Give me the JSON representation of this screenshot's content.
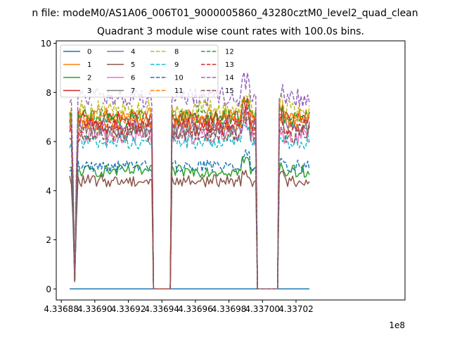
{
  "suptitle": "n file: modeM0/AS1A06_006T01_9000005860_43280cztM0_level2_quad_clean",
  "chart_data": {
    "type": "line",
    "title": "Quadrant 3 module wise count rates with 100.0s bins.",
    "xlabel": "",
    "ylabel": "",
    "x_offset_label": "1e8",
    "xlim": [
      4.336877,
      4.337085
    ],
    "ylim": [
      -0.45,
      10.1
    ],
    "xticks": [
      4.33688,
      4.3369,
      4.33692,
      4.33694,
      4.33696,
      4.33698,
      4.337,
      4.33702
    ],
    "xtick_labels": [
      "4.33688",
      "4.33690",
      "4.33692",
      "4.33694",
      "4.33696",
      "4.33698",
      "4.33700",
      "4.33702"
    ],
    "yticks": [
      0,
      2,
      4,
      6,
      8,
      10
    ],
    "ytick_labels": [
      "0",
      "2",
      "4",
      "6",
      "8",
      "10"
    ],
    "grid": false,
    "legend": {
      "placement": "top-left",
      "columns": 4
    },
    "time_points": {
      "segment_starts": [
        4.336885,
        4.336946,
        4.33701
      ],
      "segment_ends": [
        4.336934,
        4.336996,
        4.337028
      ],
      "gap_plateau": 0,
      "bin_width": 1e-06
    },
    "series": [
      {
        "name": "0",
        "color": "#1f77b4",
        "dashed": false,
        "level": 0.0,
        "spread": 0.0
      },
      {
        "name": "1",
        "color": "#ff7f0e",
        "dashed": false,
        "level": 7.0,
        "spread": 0.4
      },
      {
        "name": "2",
        "color": "#2ca02c",
        "dashed": false,
        "level": 4.8,
        "spread": 0.25
      },
      {
        "name": "3",
        "color": "#d62728",
        "dashed": false,
        "level": 6.9,
        "spread": 0.35
      },
      {
        "name": "4",
        "color": "#9467bd",
        "dashed": false,
        "level": 6.6,
        "spread": 0.35
      },
      {
        "name": "5",
        "color": "#8c564b",
        "dashed": false,
        "level": 4.4,
        "spread": 0.25
      },
      {
        "name": "6",
        "color": "#e377c2",
        "dashed": false,
        "level": 6.2,
        "spread": 0.35
      },
      {
        "name": "7",
        "color": "#7f7f7f",
        "dashed": false,
        "level": 6.5,
        "spread": 0.35
      },
      {
        "name": "8",
        "color": "#bcbd22",
        "dashed": true,
        "level": 7.3,
        "spread": 0.4
      },
      {
        "name": "9",
        "color": "#17becf",
        "dashed": true,
        "level": 6.0,
        "spread": 0.3
      },
      {
        "name": "10",
        "color": "#1f77b4",
        "dashed": true,
        "level": 5.0,
        "spread": 0.25
      },
      {
        "name": "11",
        "color": "#ff7f0e",
        "dashed": true,
        "level": 6.8,
        "spread": 0.35
      },
      {
        "name": "12",
        "color": "#2ca02c",
        "dashed": true,
        "level": 7.0,
        "spread": 0.35
      },
      {
        "name": "13",
        "color": "#d62728",
        "dashed": true,
        "level": 6.6,
        "spread": 0.35
      },
      {
        "name": "14",
        "color": "#9467bd",
        "dashed": true,
        "level": 7.8,
        "spread": 0.4
      },
      {
        "name": "15",
        "color": "#8c564b",
        "dashed": true,
        "level": 6.3,
        "spread": 0.35
      }
    ]
  }
}
